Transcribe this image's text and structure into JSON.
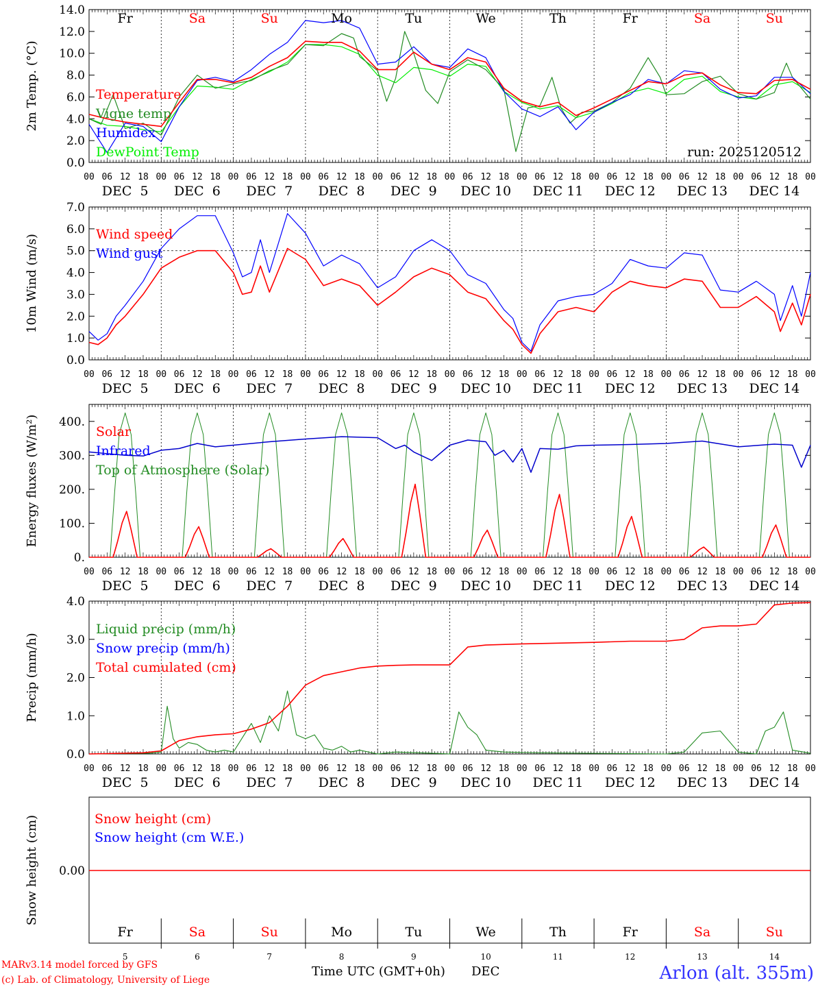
{
  "days": [
    "Fr",
    "Sa",
    "Su",
    "Mo",
    "Tu",
    "We",
    "Th",
    "Fr",
    "Sa",
    "Su"
  ],
  "weekend": [
    false,
    true,
    true,
    false,
    false,
    false,
    false,
    false,
    true,
    true
  ],
  "date_labels": [
    "DEC  5",
    "DEC  6",
    "DEC  7",
    "DEC  8",
    "DEC  9",
    "DEC 10",
    "DEC 11",
    "DEC 12",
    "DEC 13",
    "DEC 14"
  ],
  "hour_labels": [
    "00",
    "06",
    "12",
    "18"
  ],
  "hour_end_label": "00",
  "bottom_day_numbers": [
    "5",
    "6",
    "7",
    "8",
    "9",
    "10",
    "11",
    "12",
    "13",
    "14"
  ],
  "colors": {
    "red": "#ff0000",
    "darkgreen": "#228b22",
    "blue": "#0000ff",
    "lightgreen": "#00ee00",
    "darkblue": "#0000cc",
    "station": "#3333ff"
  },
  "footer": {
    "model": "MARv3.14 model forced by GFS",
    "credit": "(c) Lab. of Climatology, University of Liege",
    "xaxis_title": "Time UTC (GMT+0h)",
    "xaxis_month": "DEC",
    "station": "Arlon (alt. 355m)"
  },
  "chart_data": [
    {
      "id": "temperature",
      "type": "line",
      "ylabel": "2m Temp. (°C)",
      "ylim": [
        0,
        14
      ],
      "yticks": [
        "0.0",
        "2.0",
        "4.0",
        "6.0",
        "8.0",
        "10.0",
        "12.0",
        "14.0"
      ],
      "run_label": "run: 2025120512",
      "x_unit": "hours since DEC 5 00 UTC",
      "legend": [
        "Temperature",
        "Vigne temp",
        "Humidex",
        "DewPoint Temp"
      ],
      "series": [
        {
          "name": "Temperature",
          "color": "red",
          "x": [
            0,
            6,
            12,
            18,
            24,
            30,
            36,
            42,
            48,
            54,
            60,
            66,
            72,
            78,
            84,
            90,
            96,
            102,
            108,
            114,
            120,
            126,
            132,
            138,
            144,
            150,
            156,
            162,
            168,
            174,
            180,
            186,
            192,
            198,
            204,
            210,
            216,
            222,
            228,
            234,
            240
          ],
          "values": [
            4.4,
            4.0,
            3.7,
            3.5,
            3.3,
            5.5,
            7.6,
            7.6,
            7.3,
            7.8,
            8.8,
            9.6,
            11.1,
            11.0,
            11.0,
            10.2,
            8.5,
            8.5,
            10.1,
            9.0,
            8.5,
            9.6,
            9.2,
            6.8,
            5.6,
            5.1,
            5.5,
            4.3,
            5.0,
            5.8,
            6.6,
            7.4,
            7.2,
            8.0,
            8.2,
            7.1,
            6.4,
            6.3,
            7.5,
            7.6,
            6.7
          ]
        },
        {
          "name": "Vigne temp",
          "color": "darkgreen",
          "x": [
            0,
            4,
            8,
            12,
            18,
            24,
            30,
            36,
            42,
            48,
            54,
            60,
            66,
            72,
            78,
            84,
            88,
            90,
            96,
            99,
            102,
            105,
            108,
            112,
            116,
            120,
            126,
            132,
            138,
            142,
            146,
            150,
            154,
            157,
            160,
            164,
            168,
            174,
            180,
            186,
            190,
            192,
            198,
            204,
            210,
            216,
            222,
            228,
            232,
            234,
            240
          ],
          "values": [
            4.0,
            3.5,
            6.2,
            3.1,
            3.6,
            2.5,
            6.0,
            8.0,
            6.8,
            7.2,
            7.5,
            8.4,
            9.0,
            10.8,
            10.7,
            11.8,
            11.4,
            9.7,
            8.4,
            5.6,
            7.7,
            12.0,
            10.0,
            6.6,
            5.4,
            8.3,
            9.4,
            8.5,
            6.7,
            1.0,
            5.0,
            5.2,
            7.8,
            5.0,
            3.6,
            4.6,
            4.7,
            5.5,
            6.8,
            9.6,
            7.8,
            6.2,
            6.3,
            7.4,
            7.9,
            6.3,
            5.8,
            6.4,
            9.1,
            7.8,
            5.8
          ]
        },
        {
          "name": "Humidex",
          "color": "blue",
          "x": [
            0,
            6,
            12,
            18,
            24,
            30,
            36,
            42,
            48,
            54,
            60,
            66,
            72,
            78,
            84,
            90,
            96,
            102,
            108,
            114,
            120,
            126,
            132,
            138,
            144,
            150,
            156,
            162,
            168,
            174,
            180,
            186,
            192,
            198,
            204,
            210,
            216,
            222,
            228,
            234,
            240
          ],
          "values": [
            3.5,
            0.9,
            3.6,
            3.3,
            1.9,
            5.1,
            7.5,
            7.8,
            7.4,
            8.5,
            9.9,
            11.0,
            13.0,
            12.8,
            13.0,
            12.3,
            9.0,
            9.2,
            10.6,
            9.0,
            8.7,
            10.4,
            9.6,
            6.5,
            4.9,
            4.2,
            5.1,
            3.0,
            4.6,
            5.5,
            6.2,
            7.6,
            7.2,
            8.4,
            8.2,
            6.7,
            5.9,
            6.1,
            7.8,
            7.8,
            6.3
          ]
        },
        {
          "name": "DewPoint Temp",
          "color": "lightgreen",
          "x": [
            0,
            6,
            12,
            18,
            24,
            30,
            36,
            42,
            48,
            54,
            60,
            66,
            72,
            78,
            84,
            90,
            96,
            102,
            108,
            114,
            120,
            126,
            132,
            138,
            144,
            150,
            156,
            162,
            168,
            174,
            180,
            186,
            192,
            198,
            204,
            210,
            216,
            222,
            228,
            234,
            240
          ],
          "values": [
            4.0,
            3.4,
            3.3,
            3.0,
            2.8,
            5.1,
            7.0,
            6.9,
            6.7,
            7.6,
            8.3,
            9.2,
            10.8,
            10.8,
            10.6,
            9.9,
            8.0,
            7.3,
            8.7,
            8.5,
            7.9,
            9.0,
            8.8,
            6.5,
            5.5,
            4.9,
            5.2,
            4.1,
            4.6,
            5.4,
            6.4,
            6.8,
            6.3,
            7.6,
            7.9,
            6.5,
            6.0,
            5.8,
            7.1,
            7.4,
            6.4
          ]
        }
      ]
    },
    {
      "id": "wind",
      "type": "line",
      "ylabel": "10m Wind (m/s)",
      "ylim": [
        0,
        7
      ],
      "yticks": [
        "0.0",
        "1.0",
        "2.0",
        "3.0",
        "4.0",
        "5.0",
        "6.0",
        "7.0"
      ],
      "reference_line": 5.0,
      "legend": [
        "Wind speed",
        "Wind gust"
      ],
      "series": [
        {
          "name": "Wind speed",
          "color": "red",
          "x": [
            0,
            3,
            6,
            9,
            12,
            18,
            24,
            30,
            36,
            42,
            48,
            51,
            54,
            57,
            60,
            66,
            72,
            78,
            84,
            90,
            96,
            102,
            108,
            114,
            120,
            126,
            132,
            138,
            141,
            144,
            147,
            150,
            156,
            162,
            168,
            174,
            180,
            186,
            192,
            198,
            204,
            210,
            216,
            222,
            228,
            230,
            234,
            237,
            240
          ],
          "values": [
            0.8,
            0.7,
            1.0,
            1.6,
            2.0,
            3.0,
            4.2,
            4.7,
            5.0,
            5.0,
            4.0,
            3.0,
            3.1,
            4.3,
            3.1,
            5.1,
            4.6,
            3.4,
            3.7,
            3.4,
            2.5,
            3.1,
            3.8,
            4.2,
            3.9,
            3.1,
            2.8,
            1.8,
            1.4,
            0.7,
            0.3,
            1.2,
            2.2,
            2.4,
            2.2,
            3.1,
            3.6,
            3.4,
            3.3,
            3.7,
            3.6,
            2.4,
            2.4,
            2.9,
            2.2,
            1.3,
            2.6,
            1.6,
            3.0
          ]
        },
        {
          "name": "Wind gust",
          "color": "blue",
          "x": [
            0,
            3,
            6,
            9,
            12,
            18,
            24,
            30,
            36,
            42,
            48,
            51,
            54,
            57,
            60,
            66,
            72,
            78,
            84,
            90,
            96,
            102,
            108,
            114,
            120,
            126,
            132,
            138,
            141,
            144,
            147,
            150,
            156,
            162,
            168,
            174,
            180,
            186,
            192,
            198,
            204,
            210,
            216,
            222,
            228,
            230,
            234,
            237,
            240
          ],
          "values": [
            1.3,
            0.9,
            1.2,
            2.0,
            2.5,
            3.6,
            5.1,
            6.0,
            6.6,
            6.6,
            4.9,
            3.8,
            4.0,
            5.5,
            4.0,
            6.7,
            5.8,
            4.3,
            4.8,
            4.4,
            3.3,
            3.8,
            5.0,
            5.5,
            5.0,
            3.9,
            3.5,
            2.3,
            1.9,
            0.8,
            0.4,
            1.6,
            2.7,
            2.9,
            3.0,
            3.5,
            4.6,
            4.3,
            4.2,
            4.9,
            4.8,
            3.2,
            3.1,
            3.6,
            3.0,
            1.8,
            3.4,
            2.0,
            4.0
          ]
        }
      ]
    },
    {
      "id": "energy",
      "type": "line",
      "ylabel": "Energy fluxes (W/m²)",
      "ylim": [
        0,
        450
      ],
      "yticks": [
        "0.",
        "100.",
        "200.",
        "300.",
        "400."
      ],
      "legend": [
        "Solar",
        "Infrared",
        "Top of Atmosphere (Solar)"
      ],
      "solar_peaks_per_day": [
        135,
        90,
        25,
        55,
        215,
        80,
        185,
        120,
        30,
        95
      ],
      "toa_peak_per_day": 425,
      "series": [
        {
          "name": "Solar",
          "color": "red",
          "note": "daytime curve 08-16 UTC each day, peak values listed in solar_peaks_per_day"
        },
        {
          "name": "Infrared",
          "color": "darkblue",
          "x": [
            0,
            6,
            12,
            18,
            24,
            30,
            36,
            42,
            48,
            60,
            72,
            84,
            96,
            102,
            105,
            108,
            114,
            120,
            126,
            132,
            135,
            138,
            141,
            144,
            147,
            150,
            156,
            162,
            168,
            180,
            192,
            204,
            216,
            228,
            234,
            237,
            240
          ],
          "values": [
            310,
            305,
            300,
            298,
            315,
            320,
            335,
            325,
            330,
            340,
            348,
            355,
            352,
            320,
            330,
            310,
            285,
            330,
            345,
            340,
            300,
            315,
            280,
            320,
            250,
            320,
            318,
            328,
            330,
            332,
            335,
            342,
            325,
            333,
            330,
            265,
            330
          ]
        },
        {
          "name": "Top of Atmosphere (Solar)",
          "color": "darkgreen",
          "note": "daytime curve 07-17 UTC each day, peak ~425"
        }
      ]
    },
    {
      "id": "precip",
      "type": "line",
      "ylabel": "Precip (mm/h)",
      "ylim": [
        0,
        4
      ],
      "yticks": [
        "0.0",
        "1.0",
        "2.0",
        "3.0",
        "4.0"
      ],
      "legend": [
        "Liquid precip (mm/h)",
        "Snow precip (mm/h)",
        "Total cumulated (cm)"
      ],
      "series": [
        {
          "name": "Liquid precip (mm/h)",
          "color": "darkgreen",
          "x": [
            0,
            20,
            24,
            26,
            28,
            30,
            33,
            36,
            39,
            42,
            45,
            48,
            54,
            57,
            60,
            63,
            66,
            69,
            72,
            75,
            78,
            81,
            84,
            87,
            90,
            96,
            102,
            114,
            120,
            123,
            126,
            129,
            132,
            138,
            150,
            192,
            198,
            204,
            210,
            216,
            222,
            225,
            228,
            231,
            234,
            240
          ],
          "values": [
            0,
            0.02,
            0.05,
            1.25,
            0.4,
            0.15,
            0.3,
            0.25,
            0.1,
            0.05,
            0.1,
            0.05,
            0.8,
            0.3,
            1.0,
            0.6,
            1.65,
            0.5,
            0.4,
            0.5,
            0.15,
            0.1,
            0.2,
            0.05,
            0.1,
            0.0,
            0.05,
            0.02,
            0.0,
            1.1,
            0.7,
            0.5,
            0.1,
            0.05,
            0.03,
            0.0,
            0.05,
            0.55,
            0.6,
            0.05,
            0.0,
            0.6,
            0.7,
            1.1,
            0.1,
            0.02
          ]
        },
        {
          "name": "Snow precip (mm/h)",
          "color": "blue",
          "values": []
        },
        {
          "name": "Total cumulated (cm)",
          "color": "red",
          "x": [
            0,
            18,
            24,
            30,
            36,
            42,
            48,
            54,
            60,
            66,
            72,
            78,
            84,
            90,
            96,
            102,
            108,
            114,
            120,
            126,
            132,
            144,
            156,
            168,
            180,
            192,
            198,
            204,
            210,
            216,
            222,
            228,
            234,
            240
          ],
          "values": [
            0,
            0.03,
            0.08,
            0.35,
            0.45,
            0.5,
            0.53,
            0.65,
            0.82,
            1.25,
            1.8,
            2.05,
            2.15,
            2.25,
            2.3,
            2.32,
            2.33,
            2.33,
            2.33,
            2.8,
            2.85,
            2.88,
            2.9,
            2.92,
            2.95,
            2.95,
            3.0,
            3.3,
            3.35,
            3.35,
            3.4,
            3.9,
            3.95,
            3.96
          ]
        }
      ]
    },
    {
      "id": "snow",
      "type": "line",
      "ylabel": "Snow height (cm)",
      "yticks": [
        "0.00"
      ],
      "legend": [
        "Snow height (cm)",
        "Snow height (cm W.E.)"
      ],
      "series": [
        {
          "name": "Snow height (cm)",
          "color": "red",
          "x": [
            0,
            240
          ],
          "values": [
            0,
            0
          ]
        },
        {
          "name": "Snow height (cm W.E.)",
          "color": "blue",
          "values": []
        }
      ]
    }
  ]
}
